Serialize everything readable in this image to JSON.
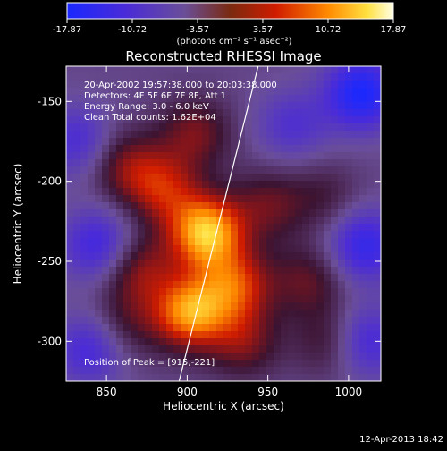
{
  "colorbar": {
    "ticks": [
      "-17.87",
      "-10.72",
      "-3.57",
      "3.57",
      "10.72",
      "17.87"
    ],
    "tick_values": [
      -17.87,
      -10.72,
      -3.57,
      3.57,
      10.72,
      17.87
    ],
    "unit_label": "(photons cm⁻² s⁻¹ asec⁻²)"
  },
  "chart_data": {
    "type": "heatmap",
    "title": "Reconstructed RHESSI Image",
    "xlabel": "Heliocentric X (arcsec)",
    "ylabel": "Heliocentric Y (arcsec)",
    "xlim": [
      825,
      1020
    ],
    "ylim": [
      -325,
      -128
    ],
    "xticks": [
      850,
      900,
      950,
      1000
    ],
    "yticks": [
      -150,
      -200,
      -250,
      -300
    ],
    "zlim": [
      -17.87,
      17.87
    ],
    "annotations": [
      "20-Apr-2002 19:57:38.000 to 20:03:38.000",
      "Detectors: 4F 5F 6F 7F 8F, Att 1",
      "Energy Range: 3.0 - 6.0 keV",
      "Clean     Total counts: 1.62E+04"
    ],
    "peak_label": "Position of Peak = [915,-221]",
    "peak": [
      915,
      -221
    ],
    "limb_line": [
      [
        895,
        -325
      ],
      [
        944,
        -128
      ]
    ],
    "blobs": [
      {
        "x": 912,
        "y": -232,
        "amp": 17.87
      },
      {
        "x": 902,
        "y": -282,
        "amp": 15.5
      },
      {
        "x": 930,
        "y": -265,
        "amp": 11
      },
      {
        "x": 885,
        "y": -205,
        "amp": 9
      },
      {
        "x": 870,
        "y": -255,
        "amp": 8
      },
      {
        "x": 862,
        "y": -190,
        "amp": 7
      },
      {
        "x": 905,
        "y": -170,
        "amp": 7
      },
      {
        "x": 950,
        "y": -215,
        "amp": 6
      },
      {
        "x": 975,
        "y": -262,
        "amp": 6
      },
      {
        "x": 990,
        "y": -300,
        "amp": 6
      },
      {
        "x": 935,
        "y": -300,
        "amp": 7
      },
      {
        "x": 862,
        "y": -290,
        "amp": 5
      },
      {
        "x": 985,
        "y": -210,
        "amp": 4
      },
      {
        "x": 845,
        "y": -240,
        "amp": -9
      },
      {
        "x": 832,
        "y": -175,
        "amp": -7
      },
      {
        "x": 840,
        "y": -305,
        "amp": -8
      },
      {
        "x": 1008,
        "y": -145,
        "amp": -13
      },
      {
        "x": 1010,
        "y": -240,
        "amp": -10
      },
      {
        "x": 965,
        "y": -165,
        "amp": -6
      },
      {
        "x": 1010,
        "y": -300,
        "amp": -9
      }
    ]
  },
  "footer": {
    "timestamp": "12-Apr-2013 18:42"
  }
}
